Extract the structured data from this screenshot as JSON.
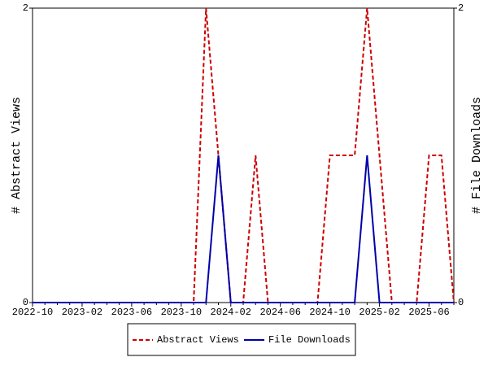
{
  "chart_data": {
    "type": "line",
    "categories": [
      "2022-10",
      null,
      null,
      null,
      "2023-02",
      null,
      null,
      null,
      "2023-06",
      null,
      null,
      null,
      "2023-10",
      null,
      null,
      null,
      "2024-02",
      null,
      null,
      null,
      "2024-06",
      null,
      null,
      null,
      "2024-10",
      null,
      null,
      null,
      "2025-02",
      null,
      null,
      null,
      "2025-06",
      null,
      null
    ],
    "y_label": "# Abstract Views",
    "y2_label": "# File Downloads",
    "ylim": [
      0,
      2
    ],
    "yticks": [
      0,
      2
    ],
    "y2lim": [
      0,
      2
    ],
    "y2ticks": [
      0,
      2
    ],
    "legend": "bottom",
    "series": [
      {
        "name": "Abstract Views",
        "color": "#cc0000",
        "dash": true,
        "values": [
          0,
          0,
          0,
          0,
          0,
          0,
          0,
          0,
          0,
          0,
          0,
          0,
          0,
          0,
          2,
          1,
          0,
          0,
          1,
          0,
          0,
          0,
          0,
          0,
          1,
          1,
          1,
          2,
          1,
          0,
          0,
          0,
          1,
          1,
          0
        ]
      },
      {
        "name": "File Downloads",
        "color": "#0000aa",
        "axis": "y2",
        "values": [
          0,
          0,
          0,
          0,
          0,
          0,
          0,
          0,
          0,
          0,
          0,
          0,
          0,
          0,
          0,
          1,
          0,
          0,
          0,
          0,
          0,
          0,
          0,
          0,
          0,
          0,
          0,
          1,
          0,
          0,
          0,
          0,
          0,
          0,
          0
        ]
      }
    ]
  }
}
